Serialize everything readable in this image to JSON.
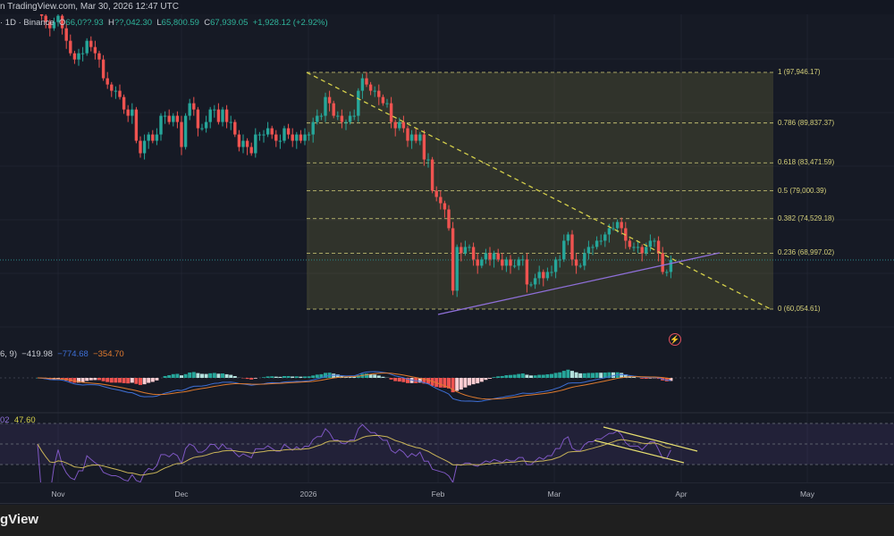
{
  "header": {
    "source": "n TradingView.com, Mar 30, 2026 12:47 UTC"
  },
  "legend": {
    "symbol": "· 1D · Binance",
    "o_label": "O",
    "open": "66,0??.93",
    "h_label": "H",
    "high": "??,042.30",
    "l_label": "L",
    "low": "65,800.59",
    "c_label": "C",
    "close": "67,939.05",
    "change": "+1,928.12 (+2.92%)"
  },
  "macd": {
    "params": "6, 9)",
    "hist": "−419.98",
    "macd": "−774.68",
    "signal": "−354.70"
  },
  "rsi": {
    "prefix": "02",
    "value": "47.60"
  },
  "fib_levels": [
    {
      "label": "1 (97,946.17)",
      "price": 97946.17
    },
    {
      "label": "0.786 (89,837.37)",
      "price": 89837.37
    },
    {
      "label": "0.618 (83,471.59)",
      "price": 83471.59
    },
    {
      "label": "0.5 (79,000.39)",
      "price": 79000.39
    },
    {
      "label": "0.382 (74,529.18)",
      "price": 74529.18
    },
    {
      "label": "0.236 (68,997.02)",
      "price": 68997.02
    },
    {
      "label": "0 (60,054.61)",
      "price": 60054.61
    }
  ],
  "time_axis": [
    "Nov",
    "Dec",
    "2026",
    "Feb",
    "Mar",
    "Apr",
    "May"
  ],
  "footer": {
    "logo": "gView"
  },
  "colors": {
    "up": "#26a69a",
    "down": "#ef5350",
    "fib": "#d4cf7a",
    "trend": "#8e6fd8"
  },
  "chart_data": {
    "type": "candlestick",
    "start": "Oct 27",
    "unit": "USD thousands (daily close)",
    "closes": [
      108,
      107,
      106,
      105,
      106,
      107,
      105,
      103,
      101,
      100,
      101,
      101,
      103,
      102,
      101,
      100,
      97,
      96,
      95,
      95,
      94,
      92,
      91,
      92,
      87,
      85,
      87,
      88,
      87,
      88,
      91,
      91,
      90,
      91,
      90,
      86,
      91,
      93,
      92,
      89,
      89,
      90,
      92,
      92,
      90,
      92,
      90,
      90,
      88,
      86,
      87,
      86,
      85,
      88,
      88,
      88,
      89,
      88,
      87,
      87,
      89,
      88,
      87,
      88,
      87,
      88,
      88,
      90,
      91,
      91,
      94,
      93,
      91,
      91,
      90,
      90,
      91,
      91,
      95,
      97,
      96,
      95,
      95,
      94,
      93,
      93,
      90,
      89,
      90,
      89,
      87,
      88,
      87,
      88,
      84,
      84,
      79,
      78,
      77,
      76,
      73,
      63,
      70,
      69,
      70,
      70,
      68,
      67,
      68,
      69,
      68,
      69,
      68,
      67,
      68,
      67,
      67,
      68,
      68,
      64,
      64,
      65,
      66,
      65,
      66,
      66,
      68,
      68,
      71,
      72,
      68,
      67,
      67,
      69,
      70,
      70,
      71,
      71,
      72,
      73,
      73,
      74,
      73,
      71,
      70,
      70,
      70,
      69,
      70,
      71,
      71,
      69,
      66,
      66,
      67.94
    ]
  }
}
